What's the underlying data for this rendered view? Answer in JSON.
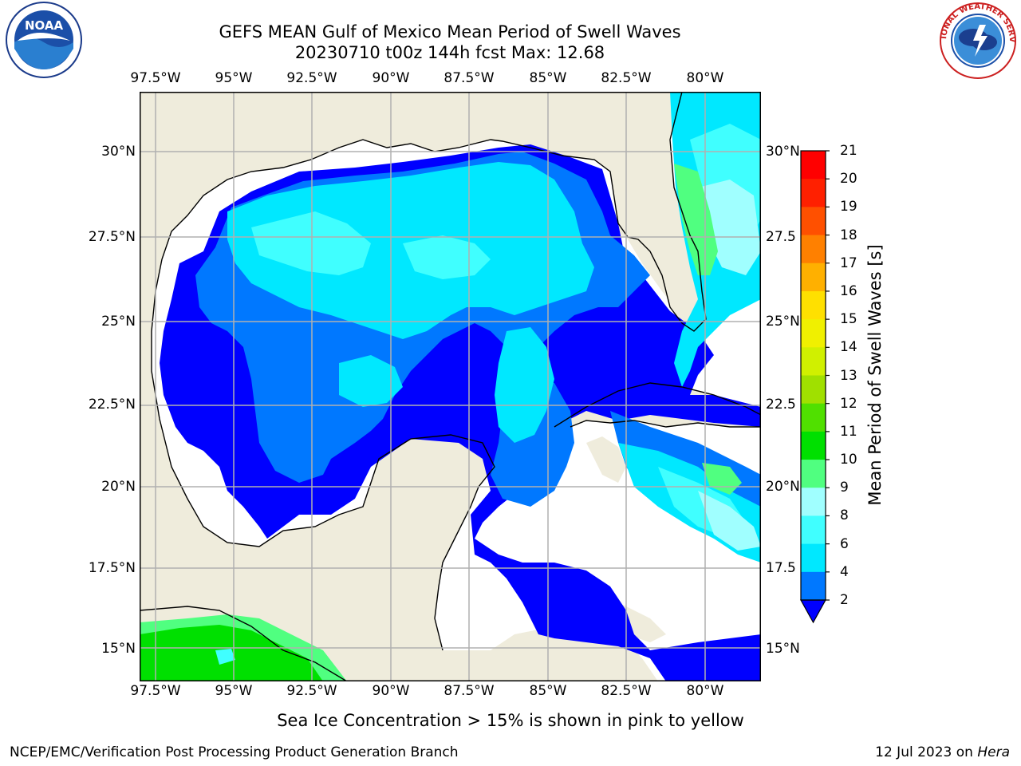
{
  "title": {
    "line1": "GEFS MEAN Gulf of Mexico Mean Period of Swell Waves",
    "line2": "20230710 t00z 144h fcst   Max: 12.68"
  },
  "axes": {
    "lon_labels": [
      "97.5°W",
      "95°W",
      "92.5°W",
      "90°W",
      "87.5°W",
      "85°W",
      "82.5°W",
      "80°W"
    ],
    "lat_labels_left": [
      "30°N",
      "27.5°N",
      "25°N",
      "22.5°N",
      "20°N",
      "17.5°N",
      "15°N"
    ],
    "lat_labels_right": [
      "30°N",
      "27.5",
      "25°N",
      "22.5",
      "20°N",
      "17.5",
      "15°N"
    ]
  },
  "colorbar": {
    "label": "Mean Period of Swell Waves [s]",
    "ticks": [
      "2",
      "4",
      "6",
      "8",
      "9",
      "10",
      "11",
      "12",
      "13",
      "14",
      "15",
      "16",
      "17",
      "18",
      "19",
      "20",
      "21"
    ],
    "colors": [
      "#0000ff",
      "#0078ff",
      "#00e8ff",
      "#40ffff",
      "#a0ffff",
      "#50ff80",
      "#00e000",
      "#50e000",
      "#a0e000",
      "#d0f000",
      "#f0f000",
      "#ffe000",
      "#ffb000",
      "#ff8000",
      "#ff5000",
      "#ff2000",
      "#ff0000"
    ]
  },
  "colors": {
    "land": "#efecdc",
    "grid": "#b0b0b0"
  },
  "logos": {
    "left_text": "NOAA",
    "right_text": "NATIONAL WEATHER SERVICE"
  },
  "notes": {
    "ice": "Sea Ice Concentration > 15% is shown in pink to yellow"
  },
  "footer": {
    "left": "NCEP/EMC/Verification Post Processing Product Generation Branch",
    "right_date": "12 Jul 2023 on ",
    "right_host": "Hera"
  }
}
